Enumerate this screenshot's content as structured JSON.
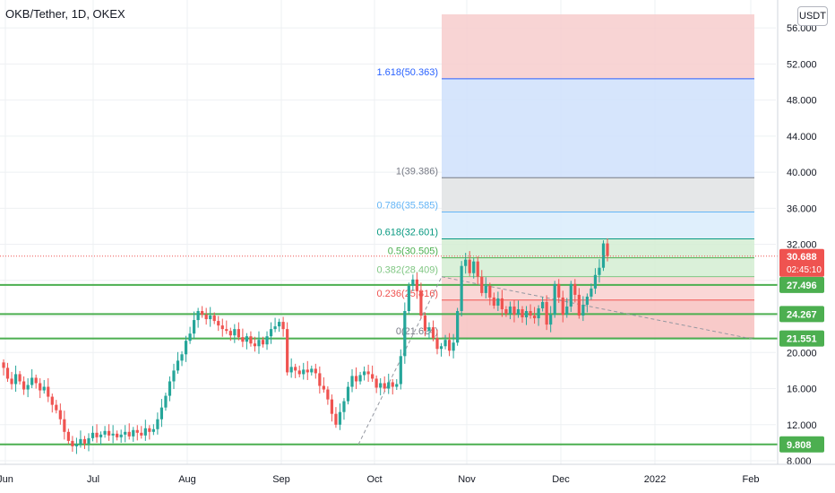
{
  "header": {
    "symbol_title": "OKB/Tether, 1D, OKEX",
    "currency": "USDT"
  },
  "colors": {
    "up": "#26a69a",
    "down": "#ef5350",
    "support": "#4caf50",
    "fib_0": "#f7c1c0",
    "fib_0236": "#f9d0cf",
    "fib_0382": "#d3edd2",
    "fib_0618": "#d9ecfb",
    "fib_1": "#e6e6e6",
    "fib_1618": "#cfe0fb",
    "fib_top": "#f7cdcd"
  },
  "chart_data": {
    "type": "candlestick",
    "title": "OKB/Tether, 1D, OKEX",
    "x_ticks": [
      "Jun",
      "Jul",
      "Aug",
      "Sep",
      "Oct",
      "Nov",
      "Dec",
      "2022",
      "Feb"
    ],
    "y_ticks": [
      "8.000",
      "12.000",
      "16.000",
      "20.000",
      "24.000",
      "28.000",
      "32.000",
      "36.000",
      "40.000",
      "44.000",
      "48.000",
      "52.000",
      "56.000"
    ],
    "ylim": [
      7.5,
      57
    ],
    "current_price": "30.688",
    "countdown": "02:45:10",
    "support_levels": [
      {
        "label": "27.496",
        "value": 27.496
      },
      {
        "label": "24.267",
        "value": 24.267
      },
      {
        "label": "21.551",
        "value": 21.551
      },
      {
        "label": "9.808",
        "value": 9.808
      }
    ],
    "fib_levels": [
      {
        "label": "0(21.624)",
        "value": 21.624,
        "color": "#787b86"
      },
      {
        "label": "0.236(25.816)",
        "value": 25.816,
        "color": "#ef5350"
      },
      {
        "label": "0.382(28.409)",
        "value": 28.409,
        "color": "#81c784"
      },
      {
        "label": "0.5(30.505)",
        "value": 30.505,
        "color": "#4caf50"
      },
      {
        "label": "0.618(32.601)",
        "value": 32.601,
        "color": "#089981"
      },
      {
        "label": "0.786(35.585)",
        "value": 35.585,
        "color": "#64b5f6"
      },
      {
        "label": "1(39.386)",
        "value": 39.386,
        "color": "#787b86"
      },
      {
        "label": "1.618(50.363)",
        "value": 50.363,
        "color": "#2962ff"
      }
    ],
    "closes": [
      18.3,
      17.1,
      16.5,
      17.6,
      16.8,
      15.9,
      16.4,
      17.2,
      16.6,
      15.8,
      16.2,
      15.1,
      14.2,
      13.6,
      12.6,
      11.2,
      10.2,
      9.6,
      9.8,
      10.4,
      9.9,
      10.5,
      11.1,
      10.6,
      10.9,
      11.3,
      10.8,
      11.0,
      10.6,
      10.9,
      11.2,
      10.7,
      11.4,
      11.1,
      10.8,
      11.6,
      11.2,
      11.5,
      12.6,
      13.9,
      15.2,
      16.8,
      18.0,
      19.1,
      19.8,
      21.3,
      22.1,
      23.6,
      24.6,
      24.2,
      23.7,
      24.1,
      23.5,
      23.0,
      22.6,
      22.4,
      21.9,
      22.6,
      21.7,
      21.2,
      21.8,
      21.0,
      20.7,
      21.4,
      20.9,
      21.8,
      22.6,
      22.9,
      23.4,
      22.6,
      17.8,
      18.4,
      18.0,
      17.6,
      18.1,
      17.8,
      18.2,
      17.7,
      16.3,
      15.9,
      14.8,
      13.2,
      12.0,
      13.4,
      14.6,
      16.2,
      17.4,
      16.8,
      17.5,
      17.9,
      17.6,
      17.1,
      16.1,
      16.6,
      16.0,
      16.7,
      16.2,
      16.5,
      19.6,
      24.6,
      27.4,
      28.1,
      26.8,
      24.1,
      22.4,
      22.8,
      21.6,
      20.4,
      20.7,
      21.4,
      20.2,
      21.1,
      24.6,
      29.6,
      30.3,
      28.8,
      30.1,
      28.4,
      26.6,
      27.4,
      26.1,
      25.2,
      26.0,
      24.8,
      24.3,
      25.1,
      24.2,
      24.8,
      23.9,
      24.6,
      24.1,
      23.8,
      24.9,
      25.6,
      23.1,
      24.2,
      27.6,
      26.1,
      24.2,
      25.1,
      27.6,
      26.4,
      24.1,
      25.3,
      26.2,
      27.1,
      28.6,
      29.4,
      32.1,
      30.7
    ]
  }
}
